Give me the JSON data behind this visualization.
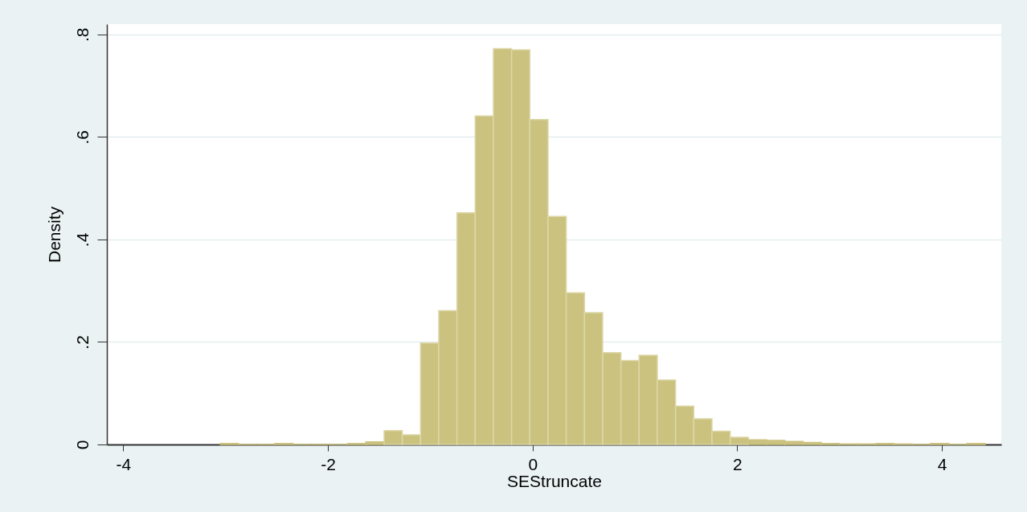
{
  "chart_data": {
    "type": "histogram",
    "xlabel": "SEStruncate",
    "ylabel": "Density",
    "color": "#cbc27f",
    "bins": [
      -3.053,
      -2.875,
      -2.697,
      -2.519,
      -2.341,
      -2.163,
      -1.985,
      -1.807,
      -1.629,
      -1.451,
      -1.273,
      -1.095,
      -0.917,
      -0.739,
      -0.561,
      -0.383,
      -0.205,
      -0.027,
      0.151,
      0.329,
      0.507,
      0.685,
      0.863,
      1.041,
      1.219,
      1.397,
      1.575,
      1.753,
      1.931,
      2.109,
      2.287,
      2.465,
      2.643,
      2.821,
      2.999,
      3.177,
      3.355,
      3.533,
      3.711,
      3.889,
      4.067,
      4.245,
      4.423
    ],
    "values": [
      0.002,
      0,
      0,
      0.002,
      0,
      0,
      0,
      0.002,
      0.005,
      0.027,
      0.019,
      0.198,
      0.261,
      0.452,
      0.641,
      0.772,
      0.77,
      0.634,
      0.445,
      0.296,
      0.257,
      0.179,
      0.164,
      0.174,
      0.126,
      0.075,
      0.05,
      0.026,
      0.014,
      0.009,
      0.008,
      0.006,
      0.004,
      0.002,
      0.001,
      0.001,
      0.002,
      0.001,
      0,
      0.002,
      0,
      0.002
    ],
    "xlim": [
      -4.16,
      4.58
    ],
    "xticks": [
      -4,
      -2,
      0,
      2,
      4
    ],
    "ylim": [
      0,
      0.82
    ],
    "yticks": [
      0,
      {
        "value": 0.2,
        "label": ".2"
      },
      {
        "value": 0.4,
        "label": ".4"
      },
      {
        "value": 0.6,
        "label": ".6"
      },
      {
        "value": 0.8,
        "label": ".8"
      }
    ],
    "grid": "y"
  }
}
